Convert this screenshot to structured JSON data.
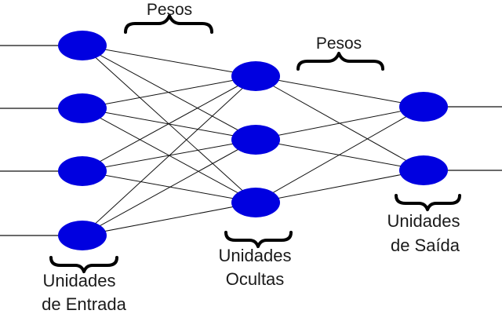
{
  "labels": {
    "weights_left": "Pesos",
    "weights_right": "Pesos",
    "input_line1": "Unidades",
    "input_line2": "de Entrada",
    "hidden_line1": "Unidades",
    "hidden_line2": "Ocultas",
    "output_line1": "Unidades",
    "output_line2": "de Saída"
  },
  "network": {
    "input_units": 4,
    "hidden_units": 3,
    "output_units": 2,
    "connectivity": "fully-connected",
    "node_color": "#0000e0"
  }
}
